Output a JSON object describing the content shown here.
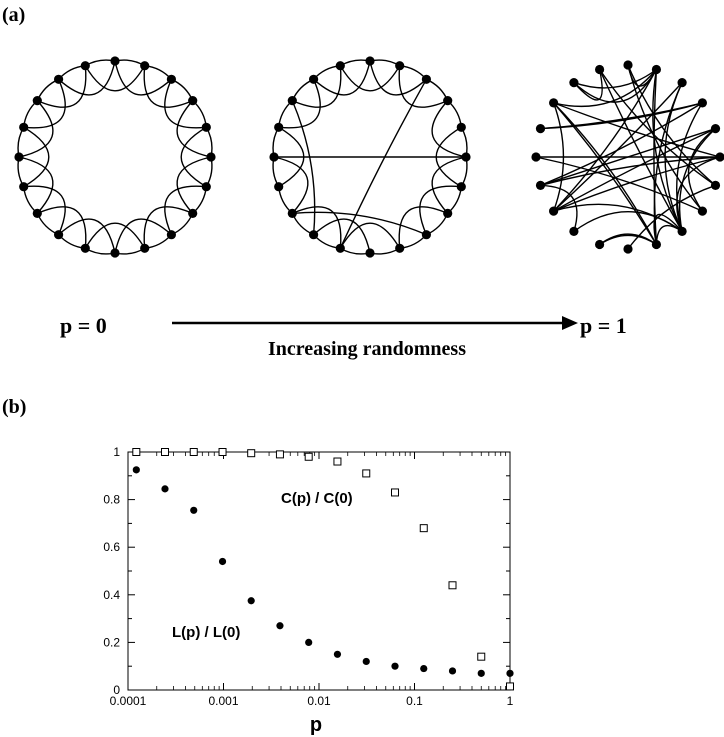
{
  "panel_a": {
    "label": "(a)",
    "p_left_label": "p = 0",
    "p_right_label": "p = 1",
    "arrow_caption": "Increasing randomness"
  },
  "panel_b": {
    "label": "(b)"
  },
  "chart_data": {
    "type": "scatter",
    "title": "",
    "xlabel": "p",
    "ylabel": "",
    "xscale": "log",
    "xlim": [
      0.0001,
      1
    ],
    "ylim": [
      0,
      1
    ],
    "x_tick_labels": [
      "0.0001",
      "0.001",
      "0.01",
      "0.1",
      "1"
    ],
    "y_tick_labels": [
      "0",
      "0.2",
      "0.4",
      "0.6",
      "0.8",
      "1"
    ],
    "grid": false,
    "series": [
      {
        "name": "C(p) / C(0)",
        "marker": "open-square",
        "color": "#000000",
        "points": [
          {
            "x": 0.0001222,
            "y": 1.0
          },
          {
            "x": 0.000244,
            "y": 1.0
          },
          {
            "x": 0.000488,
            "y": 1.0
          },
          {
            "x": 0.000977,
            "y": 1.0
          },
          {
            "x": 0.00195,
            "y": 0.995
          },
          {
            "x": 0.0039,
            "y": 0.99
          },
          {
            "x": 0.0078,
            "y": 0.98
          },
          {
            "x": 0.0156,
            "y": 0.96
          },
          {
            "x": 0.03125,
            "y": 0.91
          },
          {
            "x": 0.0625,
            "y": 0.83
          },
          {
            "x": 0.125,
            "y": 0.68
          },
          {
            "x": 0.25,
            "y": 0.44
          },
          {
            "x": 0.5,
            "y": 0.14
          },
          {
            "x": 1.0,
            "y": 0.015
          }
        ]
      },
      {
        "name": "L(p) / L(0)",
        "marker": "filled-circle",
        "color": "#000000",
        "points": [
          {
            "x": 0.0001222,
            "y": 0.925
          },
          {
            "x": 0.000244,
            "y": 0.845
          },
          {
            "x": 0.000488,
            "y": 0.755
          },
          {
            "x": 0.000977,
            "y": 0.54
          },
          {
            "x": 0.00195,
            "y": 0.375
          },
          {
            "x": 0.0039,
            "y": 0.27
          },
          {
            "x": 0.0078,
            "y": 0.2
          },
          {
            "x": 0.0156,
            "y": 0.15
          },
          {
            "x": 0.03125,
            "y": 0.12
          },
          {
            "x": 0.0625,
            "y": 0.1
          },
          {
            "x": 0.125,
            "y": 0.09
          },
          {
            "x": 0.25,
            "y": 0.08
          },
          {
            "x": 0.5,
            "y": 0.07
          },
          {
            "x": 1.0,
            "y": 0.07
          }
        ]
      }
    ]
  }
}
